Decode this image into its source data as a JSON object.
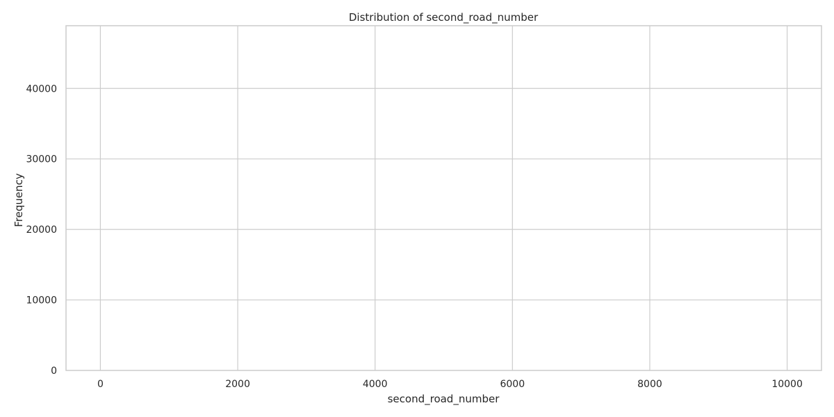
{
  "chart_data": {
    "type": "bar",
    "title": "Distribution of second_road_number",
    "xlabel": "second_road_number",
    "ylabel": "Frequency",
    "x_ticks": [
      0,
      2000,
      4000,
      6000,
      8000,
      10000
    ],
    "y_ticks": [
      0,
      10000,
      20000,
      30000,
      40000
    ],
    "xlim": [
      -500,
      10500
    ],
    "ylim": [
      0,
      48900
    ],
    "grid": true,
    "bins": []
  }
}
